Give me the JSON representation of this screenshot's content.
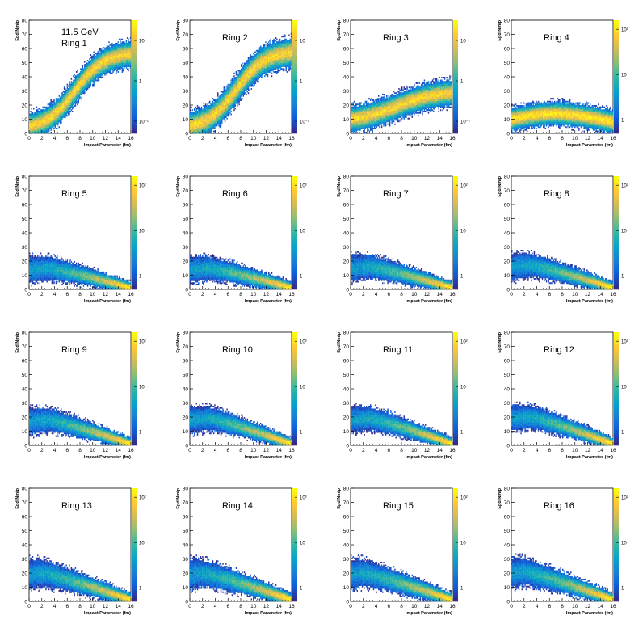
{
  "figure": {
    "energy_label": "11.5 GeV",
    "colormap": [
      "#352a87",
      "#0f5cdd",
      "#1481d6",
      "#06a4ca",
      "#2eb7a4",
      "#87bf77",
      "#d1bb59",
      "#fec832",
      "#f9fb0e"
    ]
  },
  "chart_data": [
    {
      "type": "heatmap",
      "title": "Ring 1",
      "xlabel": "Impact Parameter (fm)",
      "ylabel": "Epd Nmip",
      "xlim": [
        0,
        16
      ],
      "ylim": [
        0,
        80
      ],
      "x_ticks": [
        "0",
        "2",
        "4",
        "6",
        "8",
        "10",
        "12",
        "14",
        "16"
      ],
      "y_ticks": [
        "0",
        "10",
        "20",
        "30",
        "40",
        "50",
        "60",
        "70",
        "80"
      ],
      "colorbar_ticks": [
        "10⁻¹",
        "1",
        "10"
      ],
      "colorbar_log_range": [
        -1.3,
        1.5
      ],
      "band": {
        "y_at_b0": 5,
        "y_at_bmax": 55,
        "shape": "sigmoid",
        "half_width": 9
      }
    },
    {
      "type": "heatmap",
      "title": "Ring 2",
      "xlabel": "Impact Parameter (fm)",
      "ylabel": "Epd Nmip",
      "xlim": [
        0,
        16
      ],
      "ylim": [
        0,
        80
      ],
      "x_ticks": [
        "0",
        "2",
        "4",
        "6",
        "8",
        "10",
        "12",
        "14",
        "16"
      ],
      "y_ticks": [
        "0",
        "10",
        "20",
        "30",
        "40",
        "50",
        "60",
        "70",
        "80"
      ],
      "colorbar_ticks": [
        "10⁻¹",
        "1",
        "10"
      ],
      "colorbar_log_range": [
        -1.3,
        1.5
      ],
      "band": {
        "y_at_b0": 5,
        "y_at_bmax": 56,
        "shape": "sigmoid",
        "half_width": 10
      }
    },
    {
      "type": "heatmap",
      "title": "Ring 3",
      "xlabel": "Impact Parameter (fm)",
      "ylabel": "Epd Nmip",
      "xlim": [
        0,
        16
      ],
      "ylim": [
        0,
        80
      ],
      "x_ticks": [
        "0",
        "2",
        "4",
        "6",
        "8",
        "10",
        "12",
        "14",
        "16"
      ],
      "y_ticks": [
        "0",
        "10",
        "20",
        "30",
        "40",
        "50",
        "60",
        "70",
        "80"
      ],
      "colorbar_ticks": [
        "10⁻¹",
        "1",
        "10"
      ],
      "colorbar_log_range": [
        -1.3,
        1.5
      ],
      "band": {
        "y_at_b0": 8,
        "y_at_bmax": 30,
        "shape": "rise",
        "half_width": 9
      }
    },
    {
      "type": "heatmap",
      "title": "Ring 4",
      "xlabel": "Impact Parameter (fm)",
      "ylabel": "Epd Nmip",
      "xlim": [
        0,
        16
      ],
      "ylim": [
        0,
        80
      ],
      "x_ticks": [
        "0",
        "2",
        "4",
        "6",
        "8",
        "10",
        "12",
        "14",
        "16"
      ],
      "y_ticks": [
        "0",
        "10",
        "20",
        "30",
        "40",
        "50",
        "60",
        "70",
        "80"
      ],
      "colorbar_ticks": [
        "1",
        "10",
        "10²"
      ],
      "colorbar_log_range": [
        -0.3,
        2.2
      ],
      "band": {
        "y_at_b0": 10,
        "peak_y": 14,
        "peak_b": 7,
        "y_at_bmax": 8,
        "shape": "hump",
        "half_width": 8
      }
    },
    {
      "type": "heatmap",
      "title": "Ring 5",
      "xlabel": "Impact Parameter (fm)",
      "ylabel": "Epd Nmip",
      "xlim": [
        0,
        16
      ],
      "ylim": [
        0,
        80
      ],
      "x_ticks": [
        "0",
        "2",
        "4",
        "6",
        "8",
        "10",
        "12",
        "14",
        "16"
      ],
      "y_ticks": [
        "0",
        "10",
        "20",
        "30",
        "40",
        "50",
        "60",
        "70",
        "80"
      ],
      "colorbar_ticks": [
        "1",
        "10",
        "10²"
      ],
      "colorbar_log_range": [
        -0.3,
        2.2
      ],
      "band": {
        "y_at_b0": 14,
        "peak_y": 15,
        "peak_b": 3,
        "y_at_bmax": 1,
        "shape": "fall",
        "half_width": 9
      }
    },
    {
      "type": "heatmap",
      "title": "Ring 6",
      "xlabel": "Impact Parameter (fm)",
      "ylabel": "Epd Nmip",
      "xlim": [
        0,
        16
      ],
      "ylim": [
        0,
        80
      ],
      "x_ticks": [
        "0",
        "2",
        "4",
        "6",
        "8",
        "10",
        "12",
        "14",
        "16"
      ],
      "y_ticks": [
        "0",
        "10",
        "20",
        "30",
        "40",
        "50",
        "60",
        "70",
        "80"
      ],
      "colorbar_ticks": [
        "1",
        "10",
        "10²"
      ],
      "colorbar_log_range": [
        -0.3,
        2.2
      ],
      "band": {
        "y_at_b0": 14,
        "peak_y": 15,
        "peak_b": 3,
        "y_at_bmax": 1,
        "shape": "fall",
        "half_width": 9
      }
    },
    {
      "type": "heatmap",
      "title": "Ring 7",
      "xlabel": "Impact Parameter (fm)",
      "ylabel": "Epd Nmip",
      "xlim": [
        0,
        16
      ],
      "ylim": [
        0,
        80
      ],
      "x_ticks": [
        "0",
        "2",
        "4",
        "6",
        "8",
        "10",
        "12",
        "14",
        "16"
      ],
      "y_ticks": [
        "0",
        "10",
        "20",
        "30",
        "40",
        "50",
        "60",
        "70",
        "80"
      ],
      "colorbar_ticks": [
        "1",
        "10",
        "10²"
      ],
      "colorbar_log_range": [
        -0.3,
        2.2
      ],
      "band": {
        "y_at_b0": 15,
        "peak_y": 16,
        "peak_b": 3,
        "y_at_bmax": 1,
        "shape": "fall",
        "half_width": 9
      }
    },
    {
      "type": "heatmap",
      "title": "Ring 8",
      "xlabel": "Impact Parameter (fm)",
      "ylabel": "Epd Nmip",
      "xlim": [
        0,
        16
      ],
      "ylim": [
        0,
        80
      ],
      "x_ticks": [
        "0",
        "2",
        "4",
        "6",
        "8",
        "10",
        "12",
        "14",
        "16"
      ],
      "y_ticks": [
        "0",
        "10",
        "20",
        "30",
        "40",
        "50",
        "60",
        "70",
        "80"
      ],
      "colorbar_ticks": [
        "1",
        "10",
        "10²"
      ],
      "colorbar_log_range": [
        -0.3,
        2.2
      ],
      "band": {
        "y_at_b0": 16,
        "peak_y": 17,
        "peak_b": 3,
        "y_at_bmax": 1,
        "shape": "fall",
        "half_width": 9
      }
    },
    {
      "type": "heatmap",
      "title": "Ring 9",
      "xlabel": "Impact Parameter (fm)",
      "ylabel": "Epd Nmip",
      "xlim": [
        0,
        16
      ],
      "ylim": [
        0,
        80
      ],
      "x_ticks": [
        "0",
        "2",
        "4",
        "6",
        "8",
        "10",
        "12",
        "14",
        "16"
      ],
      "y_ticks": [
        "0",
        "10",
        "20",
        "30",
        "40",
        "50",
        "60",
        "70",
        "80"
      ],
      "colorbar_ticks": [
        "1",
        "10",
        "10²"
      ],
      "colorbar_log_range": [
        -0.3,
        2.2
      ],
      "band": {
        "y_at_b0": 17,
        "peak_y": 18,
        "peak_b": 3,
        "y_at_bmax": 1,
        "shape": "fall",
        "half_width": 9
      }
    },
    {
      "type": "heatmap",
      "title": "Ring 10",
      "xlabel": "Impact Parameter (fm)",
      "ylabel": "Epd Nmip",
      "xlim": [
        0,
        16
      ],
      "ylim": [
        0,
        80
      ],
      "x_ticks": [
        "0",
        "2",
        "4",
        "6",
        "8",
        "10",
        "12",
        "14",
        "16"
      ],
      "y_ticks": [
        "0",
        "10",
        "20",
        "30",
        "40",
        "50",
        "60",
        "70",
        "80"
      ],
      "colorbar_ticks": [
        "1",
        "10",
        "10²"
      ],
      "colorbar_log_range": [
        -0.3,
        2.2
      ],
      "band": {
        "y_at_b0": 18,
        "peak_y": 19,
        "peak_b": 3,
        "y_at_bmax": 1,
        "shape": "fall",
        "half_width": 9
      }
    },
    {
      "type": "heatmap",
      "title": "Ring 11",
      "xlabel": "Impact Parameter (fm)",
      "ylabel": "Epd Nmip",
      "xlim": [
        0,
        16
      ],
      "ylim": [
        0,
        80
      ],
      "x_ticks": [
        "0",
        "2",
        "4",
        "6",
        "8",
        "10",
        "12",
        "14",
        "16"
      ],
      "y_ticks": [
        "0",
        "10",
        "20",
        "30",
        "40",
        "50",
        "60",
        "70",
        "80"
      ],
      "colorbar_ticks": [
        "1",
        "10",
        "10²"
      ],
      "colorbar_log_range": [
        -0.3,
        2.2
      ],
      "band": {
        "y_at_b0": 18,
        "peak_y": 19,
        "peak_b": 3,
        "y_at_bmax": 1,
        "shape": "fall",
        "half_width": 9
      }
    },
    {
      "type": "heatmap",
      "title": "Ring 12",
      "xlabel": "Impact Parameter (fm)",
      "ylabel": "Epd Nmip",
      "xlim": [
        0,
        16
      ],
      "ylim": [
        0,
        80
      ],
      "x_ticks": [
        "0",
        "2",
        "4",
        "6",
        "8",
        "10",
        "12",
        "14",
        "16"
      ],
      "y_ticks": [
        "0",
        "10",
        "20",
        "30",
        "40",
        "50",
        "60",
        "70",
        "80"
      ],
      "colorbar_ticks": [
        "1",
        "10",
        "10²"
      ],
      "colorbar_log_range": [
        -0.3,
        2.2
      ],
      "band": {
        "y_at_b0": 19,
        "peak_y": 20,
        "peak_b": 3,
        "y_at_bmax": 1,
        "shape": "fall",
        "half_width": 9
      }
    },
    {
      "type": "heatmap",
      "title": "Ring 13",
      "xlabel": "Impact Parameter (fm)",
      "ylabel": "Epd Nmip",
      "xlim": [
        0,
        16
      ],
      "ylim": [
        0,
        80
      ],
      "x_ticks": [
        "0",
        "2",
        "4",
        "6",
        "8",
        "10",
        "12",
        "14",
        "16"
      ],
      "y_ticks": [
        "0",
        "10",
        "20",
        "30",
        "40",
        "50",
        "60",
        "70",
        "80"
      ],
      "colorbar_ticks": [
        "1",
        "10",
        "10²"
      ],
      "colorbar_log_range": [
        -0.3,
        2.2
      ],
      "band": {
        "y_at_b0": 19,
        "peak_y": 20,
        "peak_b": 2,
        "y_at_bmax": 1,
        "shape": "fall",
        "half_width": 10
      }
    },
    {
      "type": "heatmap",
      "title": "Ring 14",
      "xlabel": "Impact Parameter (fm)",
      "ylabel": "Epd Nmip",
      "xlim": [
        0,
        16
      ],
      "ylim": [
        0,
        80
      ],
      "x_ticks": [
        "0",
        "2",
        "4",
        "6",
        "8",
        "10",
        "12",
        "14",
        "16"
      ],
      "y_ticks": [
        "0",
        "10",
        "20",
        "30",
        "40",
        "50",
        "60",
        "70",
        "80"
      ],
      "colorbar_ticks": [
        "1",
        "10",
        "10²"
      ],
      "colorbar_log_range": [
        -0.3,
        2.2
      ],
      "band": {
        "y_at_b0": 19,
        "peak_y": 20,
        "peak_b": 2,
        "y_at_bmax": 1,
        "shape": "fall",
        "half_width": 10
      }
    },
    {
      "type": "heatmap",
      "title": "Ring 15",
      "xlabel": "Impact Parameter (fm)",
      "ylabel": "Epd Nmip",
      "xlim": [
        0,
        16
      ],
      "ylim": [
        0,
        80
      ],
      "x_ticks": [
        "0",
        "2",
        "4",
        "6",
        "8",
        "10",
        "12",
        "14",
        "16"
      ],
      "y_ticks": [
        "0",
        "10",
        "20",
        "30",
        "40",
        "50",
        "60",
        "70",
        "80"
      ],
      "colorbar_ticks": [
        "1",
        "10",
        "10²"
      ],
      "colorbar_log_range": [
        -0.3,
        2.2
      ],
      "band": {
        "y_at_b0": 19,
        "peak_y": 20,
        "peak_b": 2,
        "y_at_bmax": 1,
        "shape": "fall",
        "half_width": 10
      }
    },
    {
      "type": "heatmap",
      "title": "Ring 16",
      "xlabel": "Impact Parameter (fm)",
      "ylabel": "Epd Nmip",
      "xlim": [
        0,
        16
      ],
      "ylim": [
        0,
        80
      ],
      "x_ticks": [
        "0",
        "2",
        "4",
        "6",
        "8",
        "10",
        "12",
        "14",
        "16"
      ],
      "y_ticks": [
        "0",
        "10",
        "20",
        "30",
        "40",
        "50",
        "60",
        "70",
        "80"
      ],
      "colorbar_ticks": [
        "1",
        "10",
        "10²"
      ],
      "colorbar_log_range": [
        -0.3,
        2.2
      ],
      "band": {
        "y_at_b0": 20,
        "peak_y": 21,
        "peak_b": 2,
        "y_at_bmax": 1,
        "shape": "fall",
        "half_width": 10
      }
    }
  ]
}
